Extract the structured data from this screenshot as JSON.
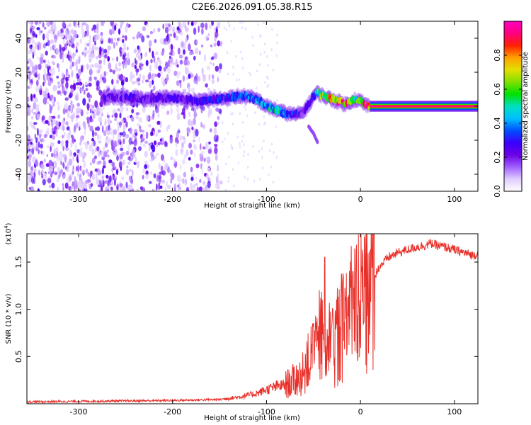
{
  "title": "C2E6.2026.091.05.38.R15",
  "chart_data": [
    {
      "type": "heatmap",
      "xlabel": "Height of straight line (km)",
      "ylabel": "Frequency (Hz)",
      "xlim": [
        -355,
        125
      ],
      "ylim": [
        -50,
        50
      ],
      "xticks": [
        -300,
        -200,
        -100,
        0,
        100
      ],
      "xtick_labels": [
        "-300",
        "-200",
        "-100",
        "0",
        "100"
      ],
      "yticks": [
        -40,
        -20,
        0,
        20,
        40
      ],
      "ytick_labels": [
        "-40",
        "-20",
        "0",
        "20",
        "40"
      ],
      "noise_region_x": [
        -355,
        -148
      ],
      "track": {
        "x": [
          -275,
          -260,
          -245,
          -230,
          -215,
          -200,
          -185,
          -170,
          -155,
          -140,
          -125,
          -110,
          -100,
          -90,
          -80,
          -70,
          -62,
          -55,
          -50,
          -45,
          -40,
          -35,
          -30,
          -25,
          -20,
          -15,
          -10,
          -5,
          0,
          5,
          10,
          125
        ],
        "frequency": [
          5,
          5,
          5,
          4,
          5,
          5,
          4,
          3,
          4,
          5,
          6,
          4,
          0,
          -2,
          -4,
          -5,
          -4,
          1,
          6,
          8,
          6,
          5,
          4,
          3,
          2,
          1,
          3,
          4,
          3,
          1,
          0,
          0
        ],
        "amplitude": [
          0.25,
          0.2,
          0.25,
          0.22,
          0.25,
          0.25,
          0.25,
          0.28,
          0.3,
          0.32,
          0.35,
          0.4,
          0.45,
          0.5,
          0.4,
          0.3,
          0.2,
          0.25,
          0.3,
          0.55,
          0.65,
          0.7,
          0.75,
          0.8,
          0.85,
          0.8,
          0.6,
          0.5,
          0.6,
          0.9,
          0.95,
          0.95
        ]
      },
      "branch": {
        "x": [
          -55,
          -50,
          -45
        ],
        "frequency": [
          -12,
          -16,
          -22
        ]
      }
    },
    {
      "type": "line",
      "xlabel": "Height of straight line (km)",
      "ylabel": "SNR (10 * v/v)",
      "y_multiplier_label": "(x10",
      "y_multiplier_exponent": "4",
      "xlim": [
        -355,
        125
      ],
      "ylim": [
        0,
        18000
      ],
      "xticks": [
        -300,
        -200,
        -100,
        0,
        100
      ],
      "xtick_labels": [
        "-300",
        "-200",
        "-100",
        "0",
        "100"
      ],
      "yticks": [
        5000,
        10000,
        15000
      ],
      "ytick_labels": [
        "0.5",
        "1.0",
        "1.5"
      ],
      "series": [
        {
          "name": "SNR",
          "color": "#e8302a",
          "x": [
            -355,
            -300,
            -250,
            -200,
            -150,
            -130,
            -110,
            -100,
            -90,
            -80,
            -70,
            -60,
            -55,
            -50,
            -45,
            -40,
            -35,
            -30,
            -25,
            -20,
            -15,
            -10,
            -5,
            0,
            5,
            10,
            15,
            20,
            25,
            30,
            40,
            50,
            60,
            70,
            75,
            80,
            90,
            100,
            110,
            120,
            125
          ],
          "y": [
            200,
            250,
            300,
            350,
            450,
            700,
            1100,
            1500,
            1800,
            2000,
            2500,
            3200,
            4500,
            5500,
            6500,
            7500,
            7000,
            6000,
            7000,
            8000,
            8500,
            9500,
            10000,
            10500,
            11000,
            12000,
            13500,
            14500,
            15000,
            15500,
            16000,
            16300,
            16600,
            16800,
            17000,
            16800,
            16600,
            16300,
            16000,
            15700,
            15900
          ],
          "spikes": [
            {
              "x": -38,
              "y": 15500
            },
            {
              "x": 7,
              "y": 18000
            },
            {
              "x": -8,
              "y": 14000
            },
            {
              "x": -50,
              "y": 8500
            }
          ]
        }
      ]
    }
  ],
  "colorbar": {
    "label": "Normalized spectral amplitude",
    "range": [
      0,
      1
    ],
    "ticks": [
      0.0,
      0.2,
      0.4,
      0.6,
      0.8
    ],
    "tick_labels": [
      "0.0",
      "0.2",
      "0.4",
      "0.6",
      "0.8"
    ],
    "colors": [
      "#ffffff",
      "#e0ccff",
      "#a060ff",
      "#6a00e6",
      "#3a00ff",
      "#0050ff",
      "#00bfff",
      "#00e0c0",
      "#00e000",
      "#80e000",
      "#e0e000",
      "#ffa000",
      "#ff2000",
      "#ff0080",
      "#ff00c0"
    ]
  }
}
